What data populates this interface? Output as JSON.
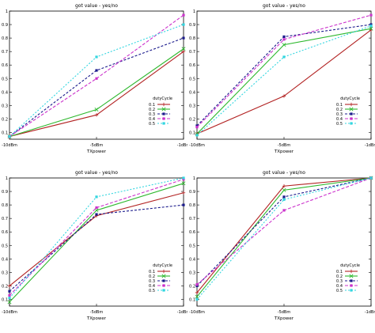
{
  "chart_data": [
    {
      "type": "line",
      "title": "got value - yes/no",
      "xlabel": "TXpower",
      "ylabel": "",
      "categories": [
        "-10dBm",
        "-5dBm",
        "-1dBm"
      ],
      "yticks": [
        "0.1",
        "0.2",
        "0.3",
        "0.4",
        "0.5",
        "0.6",
        "0.7",
        "0.8",
        "0.9",
        "1"
      ],
      "ylim": [
        0.05,
        1.0
      ],
      "legend_title": "dutyCycle",
      "legend_position": "bottom-right",
      "series": [
        {
          "name": "0.1",
          "values": [
            0.07,
            0.23,
            0.7
          ],
          "color": "#b22222",
          "marker": "plus"
        },
        {
          "name": "0.2",
          "values": [
            0.07,
            0.27,
            0.72
          ],
          "color": "#2eb82e",
          "marker": "cross"
        },
        {
          "name": "0.3",
          "values": [
            0.07,
            0.56,
            0.8
          ],
          "color": "#1a1a8c",
          "marker": "square"
        },
        {
          "name": "0.4",
          "values": [
            0.07,
            0.5,
            0.97
          ],
          "color": "#cc33cc",
          "marker": "square"
        },
        {
          "name": "0.5",
          "values": [
            0.07,
            0.66,
            0.9
          ],
          "color": "#33d6e0",
          "marker": "square"
        }
      ]
    },
    {
      "type": "line",
      "title": "got value - yes/no",
      "xlabel": "TXpower",
      "ylabel": "",
      "categories": [
        "-10dBm",
        "-5dBm",
        "-1dBm"
      ],
      "yticks": [
        "0.1",
        "0.2",
        "0.3",
        "0.4",
        "0.5",
        "0.6",
        "0.7",
        "0.8",
        "0.9",
        "1"
      ],
      "ylim": [
        0.05,
        1.0
      ],
      "legend_title": "dutyCycle",
      "legend_position": "bottom-right",
      "series": [
        {
          "name": "0.1",
          "values": [
            0.09,
            0.37,
            0.86
          ],
          "color": "#b22222",
          "marker": "plus"
        },
        {
          "name": "0.2",
          "values": [
            0.09,
            0.75,
            0.87
          ],
          "color": "#2eb82e",
          "marker": "cross"
        },
        {
          "name": "0.3",
          "values": [
            0.15,
            0.81,
            0.9
          ],
          "color": "#1a1a8c",
          "marker": "square"
        },
        {
          "name": "0.4",
          "values": [
            0.14,
            0.79,
            0.97
          ],
          "color": "#cc33cc",
          "marker": "square"
        },
        {
          "name": "0.5",
          "values": [
            0.08,
            0.66,
            0.89
          ],
          "color": "#33d6e0",
          "marker": "square"
        }
      ]
    },
    {
      "type": "line",
      "title": "got value - yes/no",
      "xlabel": "TXpower",
      "ylabel": "",
      "categories": [
        "-10dBm",
        "-5dBm",
        "-1dBm"
      ],
      "yticks": [
        "0.1",
        "0.2",
        "0.3",
        "0.4",
        "0.5",
        "0.6",
        "0.7",
        "0.8",
        "0.9",
        "1"
      ],
      "ylim": [
        0.05,
        1.0
      ],
      "legend_title": "dutyCycle",
      "legend_position": "bottom-right",
      "series": [
        {
          "name": "0.1",
          "values": [
            0.2,
            0.72,
            0.89
          ],
          "color": "#b22222",
          "marker": "plus"
        },
        {
          "name": "0.2",
          "values": [
            0.08,
            0.76,
            0.96
          ],
          "color": "#2eb82e",
          "marker": "cross"
        },
        {
          "name": "0.3",
          "values": [
            0.16,
            0.73,
            0.8
          ],
          "color": "#1a1a8c",
          "marker": "square"
        },
        {
          "name": "0.4",
          "values": [
            0.13,
            0.78,
            0.99
          ],
          "color": "#cc33cc",
          "marker": "square"
        },
        {
          "name": "0.5",
          "values": [
            0.11,
            0.86,
            1.0
          ],
          "color": "#33d6e0",
          "marker": "square"
        }
      ]
    },
    {
      "type": "line",
      "title": "got value - yes/no",
      "xlabel": "TXpower",
      "ylabel": "",
      "categories": [
        "-10dBm",
        "-5dBm",
        "-1dBm"
      ],
      "yticks": [
        "0.1",
        "0.2",
        "0.3",
        "0.4",
        "0.5",
        "0.6",
        "0.7",
        "0.8",
        "0.9",
        "1"
      ],
      "ylim": [
        0.05,
        1.0
      ],
      "legend_title": "dutyCycle",
      "legend_position": "bottom-right",
      "series": [
        {
          "name": "0.1",
          "values": [
            0.15,
            0.94,
            1.0
          ],
          "color": "#b22222",
          "marker": "plus"
        },
        {
          "name": "0.2",
          "values": [
            0.12,
            0.91,
            1.0
          ],
          "color": "#2eb82e",
          "marker": "cross"
        },
        {
          "name": "0.3",
          "values": [
            0.2,
            0.86,
            1.0
          ],
          "color": "#1a1a8c",
          "marker": "square"
        },
        {
          "name": "0.4",
          "values": [
            0.21,
            0.76,
            1.0
          ],
          "color": "#cc33cc",
          "marker": "square"
        },
        {
          "name": "0.5",
          "values": [
            0.1,
            0.84,
            1.0
          ],
          "color": "#33d6e0",
          "marker": "square"
        }
      ]
    }
  ]
}
